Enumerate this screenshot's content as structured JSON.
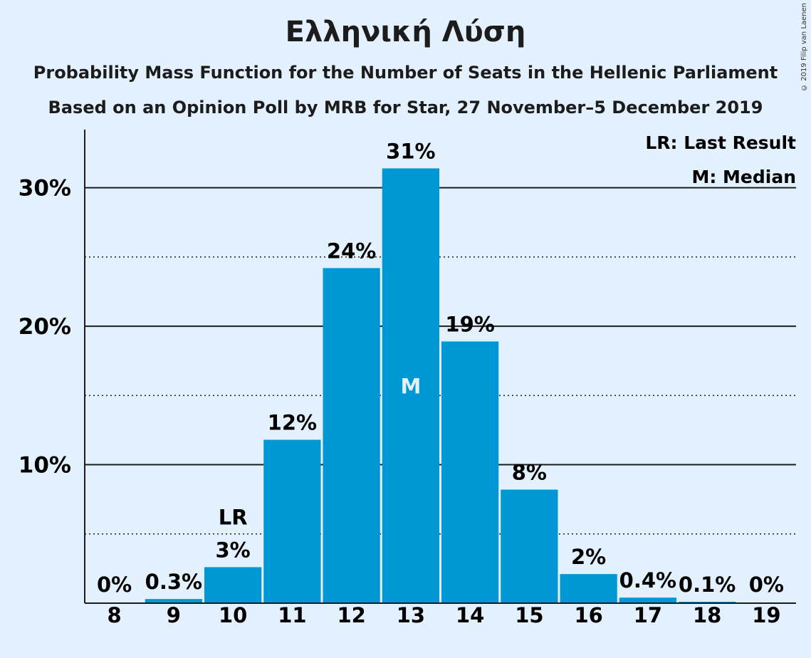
{
  "chart_data": {
    "type": "bar",
    "title": "Ελληνική Λύση",
    "subtitle": "Probability Mass Function for the Number of Seats in the Hellenic Parliament",
    "subtitle2": "Based on an Opinion Poll by MRB for Star, 27 November–5 December 2019",
    "copyright": "© 2019 Filip van Laenen",
    "categories": [
      "8",
      "9",
      "10",
      "11",
      "12",
      "13",
      "14",
      "15",
      "16",
      "17",
      "18",
      "19"
    ],
    "values": [
      0,
      0.3,
      2.6,
      11.8,
      24.2,
      31.4,
      18.9,
      8.2,
      2.1,
      0.4,
      0.1,
      0
    ],
    "data_labels": [
      "0%",
      "0.3%",
      "3%",
      "12%",
      "24%",
      "31%",
      "19%",
      "8%",
      "2%",
      "0.4%",
      "0.1%",
      "0%"
    ],
    "yticks": [
      10,
      20,
      30
    ],
    "ytick_labels": [
      "10%",
      "20%",
      "30%"
    ],
    "ylim": [
      0,
      34.2
    ],
    "last_result_category": "10",
    "median_category": "13",
    "lr_marker": "LR",
    "median_marker": "M",
    "legend": [
      "LR: Last Result",
      "M: Median"
    ],
    "bar_color": "#0098d4",
    "background_color": "#e3f0fd"
  }
}
